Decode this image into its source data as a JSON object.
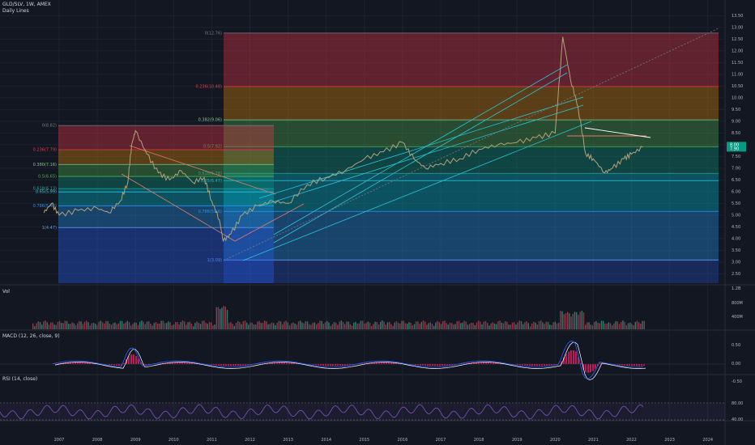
{
  "header": {
    "symbol_line": "GLD/SLV, 1W, AMEX",
    "study": "Daily Lines"
  },
  "panes": {
    "vol": "Vol",
    "macd": "MACD (12, 26, close, 9)",
    "rsi": "RSI (14, close)"
  },
  "price_axis": [
    "13.50",
    "13.00",
    "12.50",
    "12.00",
    "11.50",
    "11.00",
    "10.50",
    "10.00",
    "9.50",
    "9.00",
    "8.50",
    "8.00",
    "7.50",
    "7.00",
    "6.50",
    "6.00",
    "5.50",
    "5.00",
    "4.50",
    "4.00",
    "3.50",
    "3.00",
    "2.50"
  ],
  "last_price": {
    "value": "8.00",
    "sub": "7.90"
  },
  "vol_axis": [
    "1.2B",
    "800M",
    "400M"
  ],
  "macd_axis": [
    "0.50",
    "0.00",
    "-0.50"
  ],
  "rsi_axis": [
    "80.00",
    "40.00"
  ],
  "time_axis": [
    "2007",
    "2008",
    "2009",
    "2010",
    "2011",
    "2012",
    "2013",
    "2014",
    "2015",
    "2016",
    "2017",
    "2018",
    "2019",
    "2020",
    "2021",
    "2022",
    "2023",
    "2024"
  ],
  "fib_large": [
    {
      "label": "0(12.76)",
      "value": 12.76
    },
    {
      "label": "0.236(10.48)",
      "value": 10.48
    },
    {
      "label": "0.382(9.06)",
      "value": 9.06
    },
    {
      "label": "0.5(7.92)",
      "value": 7.92
    },
    {
      "label": "0.618(6.78)",
      "value": 6.78
    },
    {
      "label": "0.65(6.47)",
      "value": 6.47
    },
    {
      "label": "0.786(5.16)",
      "value": 5.16
    },
    {
      "label": "1(3.09)",
      "value": 3.09
    }
  ],
  "fib_small": [
    {
      "label": "0(8.82)",
      "value": 8.82
    },
    {
      "label": "0.236(7.79)",
      "value": 7.79
    },
    {
      "label": "0.380(7.16)",
      "value": 7.16
    },
    {
      "label": "0.5(6.65)",
      "value": 6.65
    },
    {
      "label": "0.618(6.13)",
      "value": 6.13
    },
    {
      "label": "0.65(5.99)",
      "value": 5.99
    },
    {
      "label": "0.786(5.40)",
      "value": 5.4
    },
    {
      "label": "1(4.47)",
      "value": 4.47
    }
  ],
  "colors": {
    "background": "#131722",
    "price_line": "#b2a27a",
    "macd_line": "#2962ff",
    "signal_line": "#ffffff",
    "hist": "#c2185b",
    "rsi_line": "#7e57c2",
    "channel": "#26c6da",
    "wedge": "#e07b67"
  }
}
